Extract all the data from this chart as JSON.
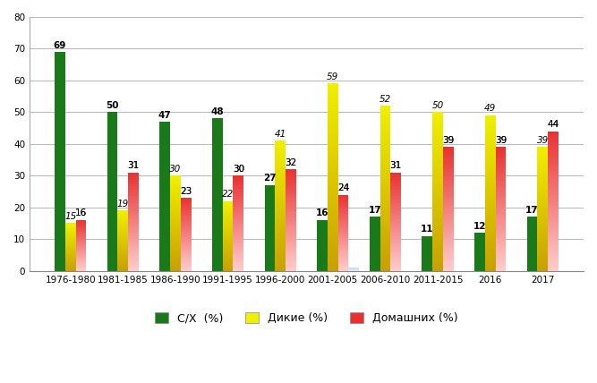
{
  "categories": [
    "1976-1980",
    "1981-1985",
    "1986-1990",
    "1991-1995",
    "1996-2000",
    "2001-2005",
    "2006-2010",
    "2011-2015",
    "2016",
    "2017"
  ],
  "sx": [
    69,
    50,
    47,
    48,
    27,
    16,
    17,
    11,
    12,
    17
  ],
  "dikie": [
    15,
    19,
    30,
    22,
    41,
    59,
    52,
    50,
    49,
    39
  ],
  "domashnih": [
    16,
    31,
    23,
    30,
    32,
    24,
    31,
    39,
    39,
    44
  ],
  "sx_color": "#1a7a1a",
  "dikie_color_top": "#f0f000",
  "dikie_color_bottom": "#c8a000",
  "domashnih_color_top": "#e83030",
  "domashnih_color_bottom": "#ffcccc",
  "remainder_color_top": "#c8d4e8",
  "remainder_color_bottom": "#e8eef8",
  "ylim": [
    0,
    80
  ],
  "yticks": [
    0,
    10,
    20,
    30,
    40,
    50,
    60,
    70,
    80
  ],
  "legend_labels": [
    "С/Х  (%)",
    "Дикие (%)",
    "Домашних (%)"
  ],
  "bar_width": 0.2,
  "label_fontsize": 7.5,
  "tick_fontsize": 7.5,
  "legend_fontsize": 9,
  "grid_color": "#bbbbbb",
  "background_color": "#ffffff"
}
